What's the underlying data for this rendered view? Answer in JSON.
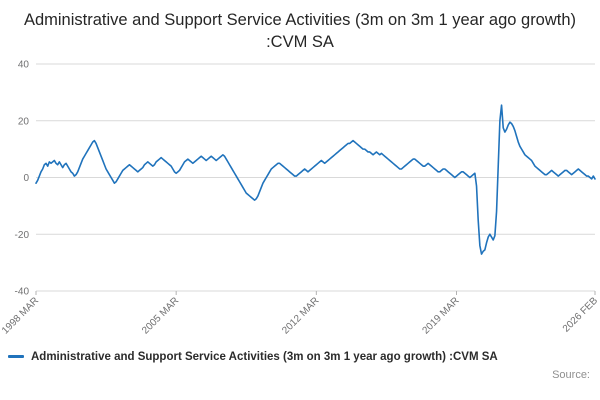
{
  "title": "Administrative and Support Service Activities (3m on 3m 1 year ago growth) :CVM SA",
  "legend": {
    "label": "Administrative and Support Service Activities (3m on 3m 1 year ago growth) :CVM SA"
  },
  "source_label": "Source:",
  "colors": {
    "line": "#2073bc",
    "grid": "#d9d9d9",
    "tick": "#b3b3b3",
    "tick_text": "#707071"
  },
  "chart_data": {
    "type": "line",
    "title": "Administrative and Support Service Activities (3m on 3m 1 year ago growth) :CVM SA",
    "xlabel": "",
    "ylabel": "",
    "ylim": [
      -40,
      40
    ],
    "yticks": [
      40,
      20,
      0,
      -20,
      -40
    ],
    "frequency": "monthly",
    "x_start": "1998 MAR",
    "x_end": "2026 FEB",
    "xticks": [
      {
        "label": "1998 MAR",
        "index": 0
      },
      {
        "label": "2005 MAR",
        "index": 84
      },
      {
        "label": "2012 MAR",
        "index": 168
      },
      {
        "label": "2019 MAR",
        "index": 252
      },
      {
        "label": "2026 FEB",
        "index": 335
      }
    ],
    "values": [
      -2,
      -1,
      0.5,
      2,
      3,
      4.5,
      5,
      4,
      5.5,
      5,
      5.5,
      6,
      5,
      4.5,
      5.5,
      4.5,
      3.5,
      4.5,
      5,
      4,
      3,
      2,
      1.5,
      0.5,
      1,
      2,
      3.5,
      5,
      6.5,
      7.5,
      8.5,
      9.5,
      10.5,
      11.5,
      12.5,
      13,
      12,
      10.5,
      9,
      7.5,
      6,
      4.5,
      3,
      2,
      1,
      0,
      -1,
      -2,
      -1.5,
      -0.5,
      0.5,
      1.5,
      2.5,
      3,
      3.5,
      4,
      4.5,
      4,
      3.5,
      3,
      2.5,
      2,
      2.5,
      3,
      3.5,
      4.5,
      5,
      5.5,
      5,
      4.5,
      4,
      4.5,
      5.5,
      6,
      6.5,
      7,
      6.5,
      6,
      5.5,
      5,
      4.5,
      4,
      3,
      2,
      1.5,
      2,
      2.5,
      3.5,
      4.5,
      5.5,
      6,
      6.5,
      6,
      5.5,
      5,
      5.5,
      6,
      6.5,
      7,
      7.5,
      7,
      6.5,
      6,
      6.5,
      7,
      7.5,
      7,
      6.5,
      6,
      6.5,
      7,
      7.5,
      8,
      7.5,
      6.5,
      5.5,
      4.5,
      3.5,
      2.5,
      1.5,
      0.5,
      -0.5,
      -1.5,
      -2.5,
      -3.5,
      -4.5,
      -5.5,
      -6,
      -6.5,
      -7,
      -7.5,
      -8,
      -7.5,
      -6.5,
      -5,
      -3.5,
      -2,
      -1,
      0,
      1,
      2,
      3,
      3.5,
      4,
      4.5,
      5,
      5,
      4.5,
      4,
      3.5,
      3,
      2.5,
      2,
      1.5,
      1,
      0.5,
      0.5,
      1,
      1.5,
      2,
      2.5,
      3,
      2.5,
      2,
      2.5,
      3,
      3.5,
      4,
      4.5,
      5,
      5.5,
      6,
      5.5,
      5,
      5.5,
      6,
      6.5,
      7,
      7.5,
      8,
      8.5,
      9,
      9.5,
      10,
      10.5,
      11,
      11.5,
      12,
      12,
      12.5,
      13,
      12.5,
      12,
      11.5,
      11,
      10.5,
      10,
      10,
      9.5,
      9,
      9,
      8.5,
      8,
      8.5,
      9,
      8.5,
      8,
      8.5,
      8,
      7.5,
      7,
      6.5,
      6,
      5.5,
      5,
      4.5,
      4,
      3.5,
      3,
      3,
      3.5,
      4,
      4.5,
      5,
      5.5,
      6,
      6.5,
      6.5,
      6,
      5.5,
      5,
      4.5,
      4,
      4,
      4.5,
      5,
      4.5,
      4,
      3.5,
      3,
      2.5,
      2,
      2,
      2.5,
      3,
      3,
      2.5,
      2,
      1.5,
      1,
      0.5,
      0,
      0.5,
      1,
      1.5,
      2,
      2,
      1.5,
      1,
      0.5,
      0,
      0.5,
      1,
      1.5,
      -3,
      -15,
      -24,
      -27,
      -26,
      -25.5,
      -23,
      -21,
      -20,
      -21,
      -22,
      -20.5,
      -12,
      4,
      20,
      25.5,
      17.5,
      16,
      17,
      18.5,
      19.5,
      19,
      18,
      16.5,
      14.5,
      12.5,
      11,
      10,
      9,
      8,
      7.5,
      7,
      6.5,
      6,
      5,
      4,
      3.5,
      3,
      2.5,
      2,
      1.5,
      1,
      1,
      1.5,
      2,
      2.5,
      2,
      1.5,
      1,
      0.5,
      1,
      1.5,
      2,
      2.5,
      2.5,
      2,
      1.5,
      1,
      1.5,
      2,
      2.5,
      3,
      2.5,
      2,
      1.5,
      1,
      0.5,
      0.5,
      0,
      -0.5,
      0.5,
      -0.5
    ]
  }
}
